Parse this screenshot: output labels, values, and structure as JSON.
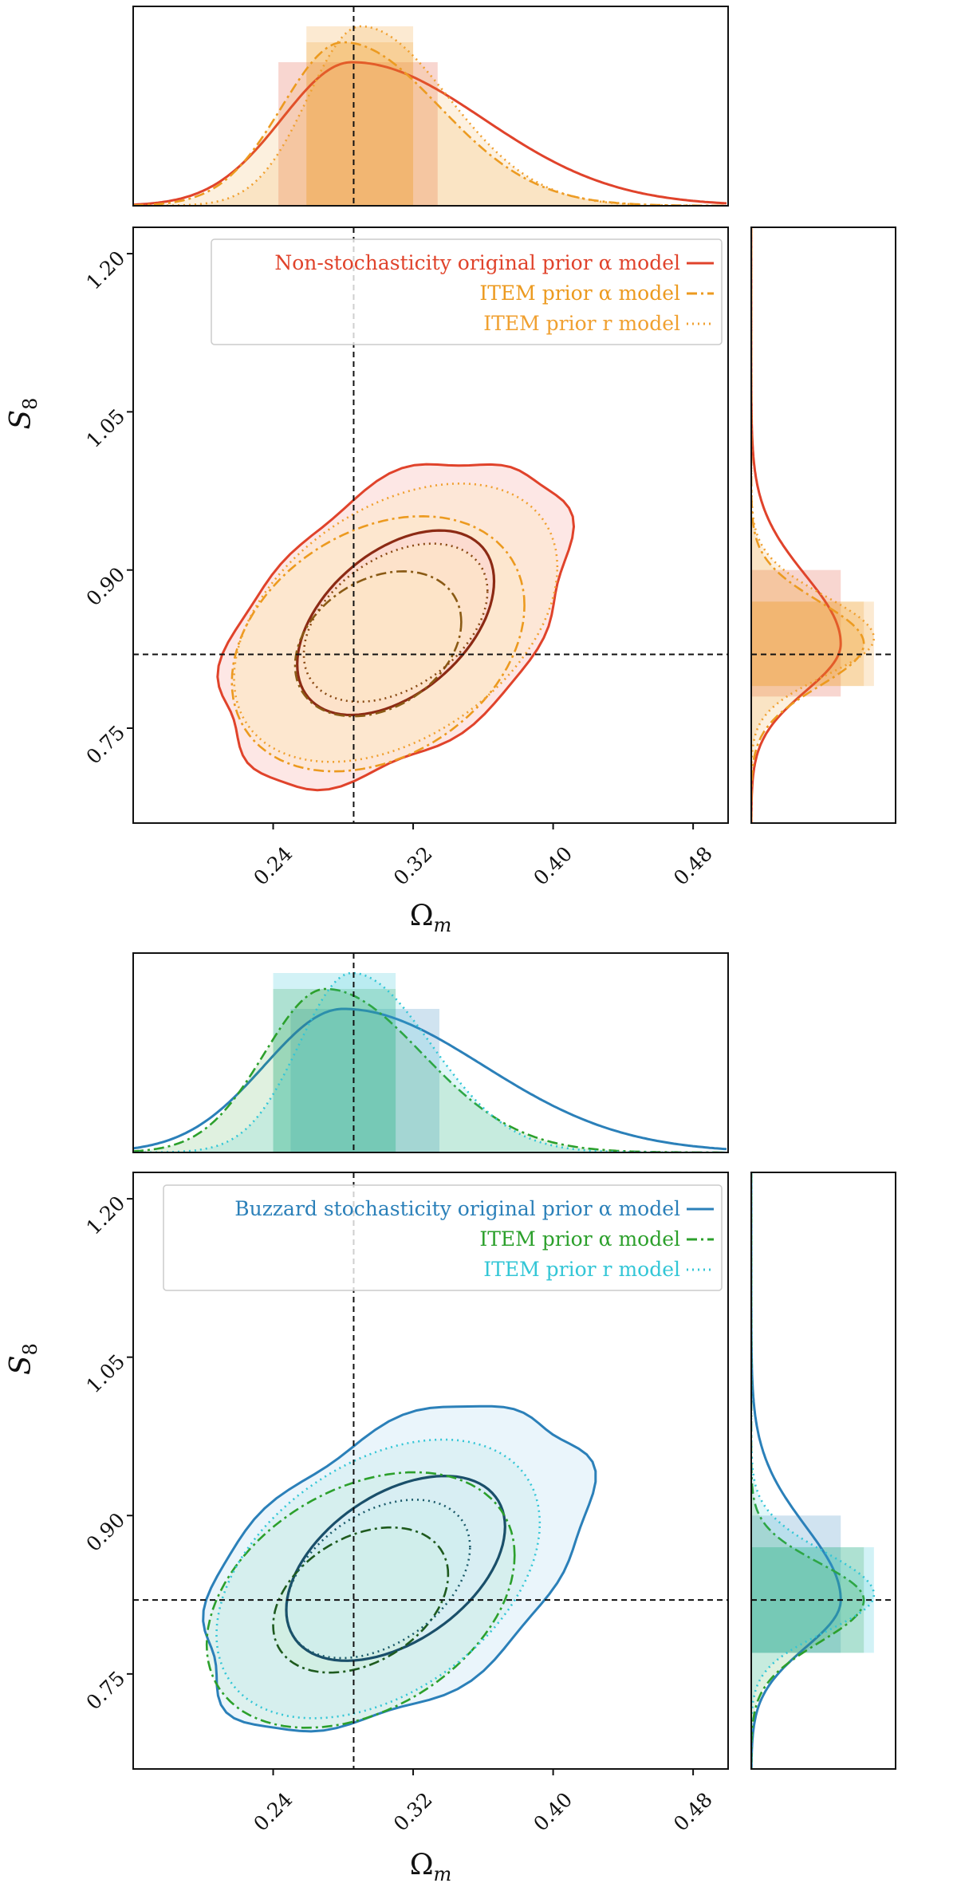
{
  "chart_data": [
    {
      "type": "contour",
      "xlabel": "Ω_m",
      "ylabel": "S_8",
      "xlim": [
        0.16,
        0.5
      ],
      "ylim": [
        0.66,
        1.225
      ],
      "xticks": [
        "0.24",
        "0.32",
        "0.40",
        "0.48"
      ],
      "yticks": [
        "0.75",
        "0.90",
        "1.05",
        "1.20"
      ],
      "truth": {
        "Omega_m": 0.286,
        "S8": 0.82
      },
      "legend_position": "top-right",
      "series": [
        {
          "name": "Non-stochasticity original prior α model",
          "style": "solid",
          "color": "#e0432b",
          "dark": "#8c2a14",
          "fill": "#fbd3d0",
          "center": [
            0.31,
            0.85
          ],
          "sx": 0.045,
          "sy": 0.07,
          "rho": 0.45,
          "omega_1d_mode": 0.285,
          "omega_1d_sigma_left": 0.04,
          "omega_1d_sigma_right": 0.075,
          "omega_interval_68": [
            0.243,
            0.334
          ],
          "s8_1d_mode": 0.83,
          "s8_1d_sigma_low": 0.045,
          "s8_1d_sigma_high": 0.065,
          "s8_interval_68": [
            0.78,
            0.9
          ]
        },
        {
          "name": "ITEM prior α model",
          "style": "dashdot",
          "color": "#ec9a1f",
          "dark": "#8a5a14",
          "fill": "#fde6c6",
          "center": [
            0.3,
            0.83
          ],
          "sx": 0.038,
          "sy": 0.055,
          "rho": 0.3,
          "omega_1d_mode": 0.28,
          "omega_1d_sigma_left": 0.035,
          "omega_1d_sigma_right": 0.055,
          "omega_interval_68": [
            0.259,
            0.32
          ],
          "s8_1d_mode": 0.83,
          "s8_1d_sigma_low": 0.04,
          "s8_1d_sigma_high": 0.04,
          "s8_interval_68": [
            0.79,
            0.87
          ]
        },
        {
          "name": "ITEM prior r model",
          "style": "dotted",
          "color": "#f0a030",
          "dark": "#8a4a14",
          "fill": "#fde6c6",
          "center": [
            0.31,
            0.85
          ],
          "sx": 0.042,
          "sy": 0.06,
          "rho": 0.4,
          "omega_1d_mode": 0.29,
          "omega_1d_sigma_left": 0.03,
          "omega_1d_sigma_right": 0.05,
          "omega_interval_68": [
            0.259,
            0.32
          ],
          "s8_1d_mode": 0.835,
          "s8_1d_sigma_low": 0.035,
          "s8_1d_sigma_high": 0.04,
          "s8_interval_68": [
            0.79,
            0.87
          ]
        }
      ]
    },
    {
      "type": "contour",
      "xlabel": "Ω_m",
      "ylabel": "S_8",
      "xlim": [
        0.16,
        0.5
      ],
      "ylim": [
        0.66,
        1.225
      ],
      "xticks": [
        "0.24",
        "0.32",
        "0.40",
        "0.48"
      ],
      "yticks": [
        "0.75",
        "0.90",
        "1.05",
        "1.20"
      ],
      "truth": {
        "Omega_m": 0.286,
        "S8": 0.82
      },
      "legend_position": "top-right",
      "series": [
        {
          "name": "Buzzard stochasticity original prior α model",
          "style": "solid",
          "color": "#2b80b9",
          "dark": "#1a4f6a",
          "fill": "#d8ecf7",
          "center": [
            0.31,
            0.85
          ],
          "sx": 0.05,
          "sy": 0.07,
          "rho": 0.45,
          "omega_1d_mode": 0.28,
          "omega_1d_sigma_left": 0.045,
          "omega_1d_sigma_right": 0.08,
          "omega_interval_68": [
            0.25,
            0.335
          ],
          "s8_1d_mode": 0.82,
          "s8_1d_sigma_low": 0.045,
          "s8_1d_sigma_high": 0.07,
          "s8_interval_68": [
            0.77,
            0.9
          ]
        },
        {
          "name": "ITEM prior α model",
          "style": "dashdot",
          "color": "#2ca02c",
          "dark": "#1e5a1e",
          "fill": "#cfeedd",
          "center": [
            0.29,
            0.82
          ],
          "sx": 0.04,
          "sy": 0.055,
          "rho": 0.35,
          "omega_1d_mode": 0.27,
          "omega_1d_sigma_left": 0.035,
          "omega_1d_sigma_right": 0.055,
          "omega_interval_68": [
            0.24,
            0.31
          ],
          "s8_1d_mode": 0.82,
          "s8_1d_sigma_low": 0.04,
          "s8_1d_sigma_high": 0.035,
          "s8_interval_68": [
            0.77,
            0.87
          ]
        },
        {
          "name": "ITEM prior r model",
          "style": "dotted",
          "color": "#33c6d6",
          "dark": "#1a5a6a",
          "fill": "#cfeeee",
          "center": [
            0.3,
            0.84
          ],
          "sx": 0.042,
          "sy": 0.06,
          "rho": 0.4,
          "omega_1d_mode": 0.285,
          "omega_1d_sigma_left": 0.03,
          "omega_1d_sigma_right": 0.045,
          "omega_interval_68": [
            0.24,
            0.31
          ],
          "s8_1d_mode": 0.825,
          "s8_1d_sigma_low": 0.035,
          "s8_1d_sigma_high": 0.04,
          "s8_interval_68": [
            0.77,
            0.87
          ]
        }
      ]
    }
  ]
}
